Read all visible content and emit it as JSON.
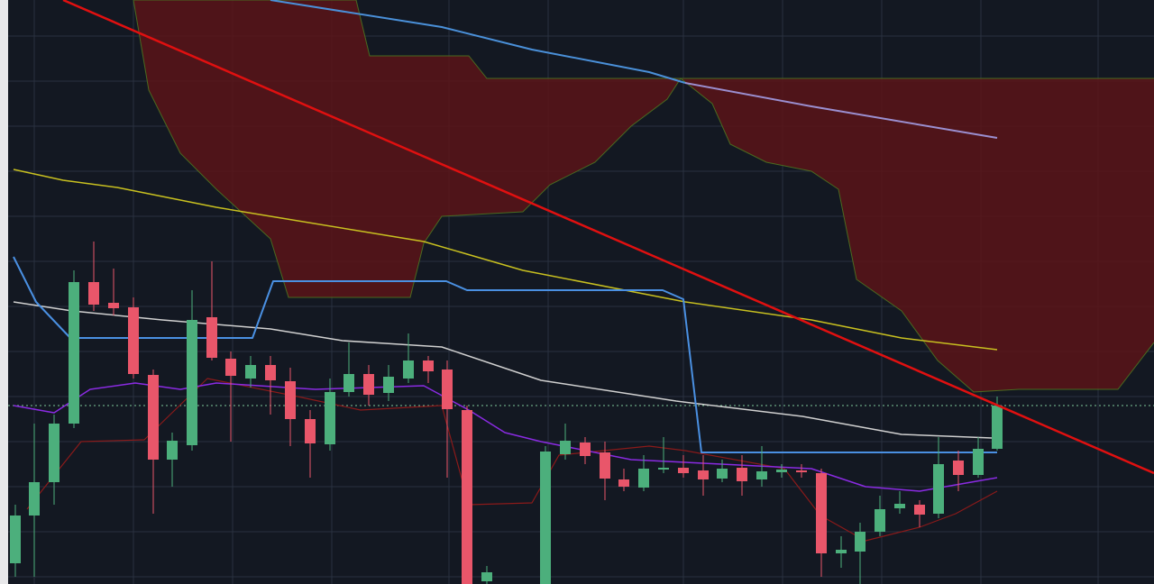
{
  "chart_data": {
    "type": "candlestick",
    "xlim": [
      0,
      1280
    ],
    "ylim": [
      0,
      648
    ],
    "xticks": [
      38,
      148,
      258,
      368,
      498,
      608,
      758,
      868,
      978,
      1088,
      1218
    ],
    "yticks": [
      608,
      558,
      508,
      458,
      408,
      358,
      308,
      258,
      208,
      158,
      108,
      58,
      8
    ],
    "grid": true,
    "up_color": "#4caf7c",
    "down_color": "#e9566a",
    "x": [
      17,
      38,
      60,
      82,
      104,
      126,
      148,
      170,
      191,
      213,
      235,
      256,
      278,
      300,
      322,
      344,
      366,
      387,
      409,
      431,
      453,
      475,
      496,
      518,
      540,
      605,
      627,
      649,
      671,
      692,
      714,
      736,
      758,
      780,
      801,
      823,
      845,
      867,
      889,
      911,
      933,
      954,
      976,
      998,
      1020,
      1041,
      1063,
      1085,
      1106
    ],
    "open": [
      23,
      76,
      113,
      178,
      335,
      312,
      307,
      232,
      138,
      154,
      296,
      250,
      228,
      243,
      225,
      183,
      155,
      213,
      233,
      212,
      228,
      248,
      238,
      193,
      3,
      0,
      144,
      157,
      146,
      116,
      107,
      127,
      129,
      126,
      117,
      129,
      116,
      124,
      126,
      123,
      34,
      36,
      58,
      84,
      88,
      78,
      137,
      121,
      150
    ],
    "close": [
      76,
      113,
      178,
      335,
      310,
      306,
      233,
      138,
      159,
      293,
      251,
      231,
      243,
      226,
      183,
      156,
      213,
      233,
      210,
      230,
      248,
      236,
      194,
      0,
      13,
      147,
      159,
      142,
      117,
      108,
      128,
      129,
      123,
      116,
      128,
      114,
      125,
      127,
      124,
      34,
      38,
      58,
      83,
      89,
      77,
      133,
      121,
      150,
      198
    ],
    "high": [
      88,
      178,
      188,
      348,
      380,
      350,
      318,
      238,
      168,
      326,
      358,
      258,
      253,
      253,
      240,
      193,
      228,
      268,
      243,
      243,
      278,
      253,
      248,
      198,
      20,
      153,
      178,
      163,
      158,
      128,
      143,
      163,
      143,
      143,
      138,
      143,
      153,
      133,
      133,
      128,
      53,
      68,
      98,
      103,
      93,
      163,
      148,
      163,
      208
    ],
    "low": [
      8,
      8,
      88,
      173,
      303,
      298,
      228,
      78,
      108,
      148,
      248,
      158,
      218,
      188,
      153,
      118,
      148,
      208,
      198,
      203,
      223,
      223,
      118,
      0,
      0,
      0,
      138,
      133,
      93,
      103,
      103,
      123,
      118,
      98,
      113,
      98,
      108,
      118,
      118,
      8,
      18,
      0,
      53,
      78,
      63,
      73,
      103,
      118,
      148
    ],
    "price_line": 198,
    "price_line_color": "#7fc99a",
    "cloud": {
      "color": "#5a1418",
      "edge_color": "#4a6a20",
      "upper": {
        "x": [
          148,
          395,
          410,
          520,
          540,
          740,
          1280
        ],
        "values": [
          648,
          648,
          586,
          586,
          561,
          561,
          561
        ]
      },
      "lower": {
        "x": [
          148,
          165,
          200,
          240,
          300,
          320,
          455,
          470,
          490,
          580,
          610,
          660,
          700,
          740,
          755,
          790,
          810,
          850,
          900,
          930,
          950,
          1000,
          1040,
          1080,
          1130,
          1240,
          1280
        ],
        "values": [
          648,
          548,
          478,
          438,
          383,
          318,
          318,
          378,
          408,
          413,
          443,
          468,
          508,
          538,
          561,
          533,
          488,
          468,
          458,
          438,
          338,
          303,
          248,
          213,
          216,
          216,
          268
        ]
      }
    },
    "lines": [
      {
        "color": "#8b1a1a",
        "width": 1.2,
        "x": [
          30,
          90,
          160,
          230,
          330,
          400,
          490,
          520,
          590,
          620,
          720,
          760,
          870,
          910,
          960,
          1020,
          1060,
          1106
        ],
        "values": [
          83,
          158,
          160,
          228,
          208,
          193,
          198,
          88,
          90,
          143,
          153,
          148,
          128,
          76,
          48,
          63,
          78,
          103
        ]
      },
      {
        "color": "#8a2be2",
        "width": 1.5,
        "x": [
          15,
          60,
          100,
          150,
          200,
          240,
          350,
          470,
          520,
          560,
          600,
          700,
          800,
          900,
          960,
          1020,
          1106
        ],
        "values": [
          198,
          190,
          216,
          223,
          216,
          223,
          216,
          220,
          193,
          168,
          158,
          138,
          133,
          128,
          108,
          103,
          118
        ]
      },
      {
        "color": "#d0d0d0",
        "width": 1.5,
        "x": [
          15,
          80,
          180,
          300,
          380,
          490,
          600,
          750,
          890,
          1000,
          1100
        ],
        "values": [
          313,
          303,
          293,
          283,
          270,
          263,
          226,
          203,
          186,
          166,
          162
        ]
      },
      {
        "color": "#c8c020",
        "width": 1.5,
        "x": [
          15,
          70,
          130,
          240,
          300,
          470,
          580,
          760,
          900,
          1000,
          1106
        ],
        "values": [
          460,
          448,
          440,
          418,
          408,
          380,
          348,
          313,
          293,
          273,
          260
        ]
      },
      {
        "color": "#4a90e2",
        "width": 2,
        "x": [
          15,
          40,
          78,
          280,
          303,
          495,
          518,
          735,
          758,
          778,
          1106
        ],
        "values": [
          363,
          313,
          273,
          273,
          336,
          336,
          326,
          326,
          316,
          146,
          146
        ]
      },
      {
        "color": "#4a90d9",
        "width": 2,
        "x": [
          300,
          490,
          590,
          720,
          760
        ],
        "values": [
          648,
          618,
          593,
          568,
          556
        ]
      },
      {
        "color": "#9b8fd0",
        "width": 2,
        "x": [
          760,
          900,
          1106
        ],
        "values": [
          556,
          530,
          495
        ]
      },
      {
        "color": "#e01010",
        "width": 2.5,
        "x": [
          70,
          1280
        ],
        "values": [
          648,
          123
        ]
      }
    ]
  }
}
